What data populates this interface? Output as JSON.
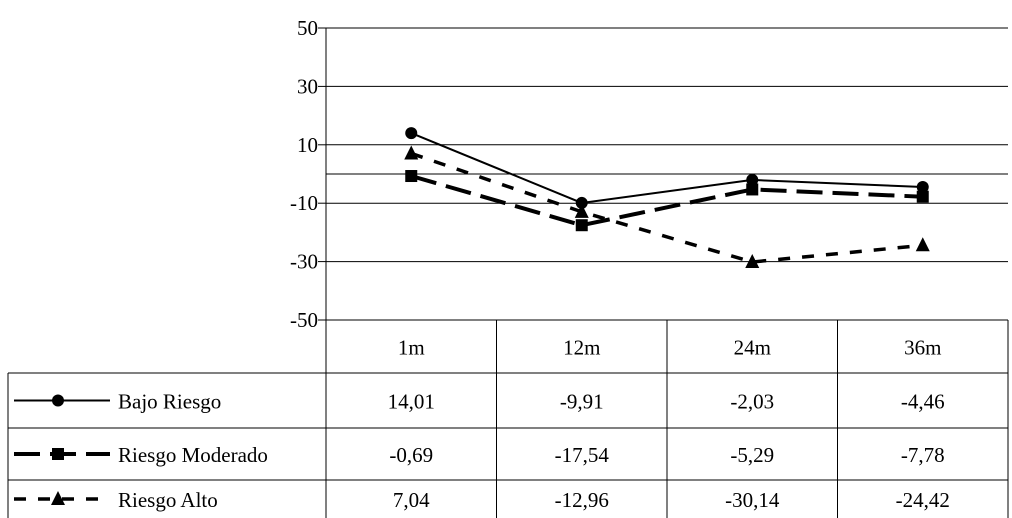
{
  "chart_data": {
    "type": "line",
    "categories": [
      "1m",
      "12m",
      "24m",
      "36m"
    ],
    "y_ticks": [
      "50",
      "30",
      "10",
      "-10",
      "-30",
      "-50"
    ],
    "ylim": [
      -50,
      50
    ],
    "grid": true,
    "legend": "data-table-left",
    "series": [
      {
        "name": "Bajo Riesgo",
        "values": [
          14.01,
          -9.91,
          -2.03,
          -4.46
        ],
        "labels": [
          "14,01",
          "-9,91",
          "-2,03",
          "-4,46"
        ],
        "marker": "circle",
        "line_style": "solid",
        "color": "#000000"
      },
      {
        "name": "Riesgo Moderado",
        "values": [
          -0.69,
          -17.54,
          -5.29,
          -7.78
        ],
        "labels": [
          "-0,69",
          "-17,54",
          "-5,29",
          "-7,78"
        ],
        "marker": "square",
        "line_style": "long-dash",
        "color": "#000000"
      },
      {
        "name": "Riesgo Alto",
        "values": [
          7.04,
          -12.96,
          -30.14,
          -24.42
        ],
        "labels": [
          "7,04",
          "-12,96",
          "-30,14",
          "-24,42"
        ],
        "marker": "triangle",
        "line_style": "short-dash",
        "color": "#000000"
      }
    ]
  }
}
